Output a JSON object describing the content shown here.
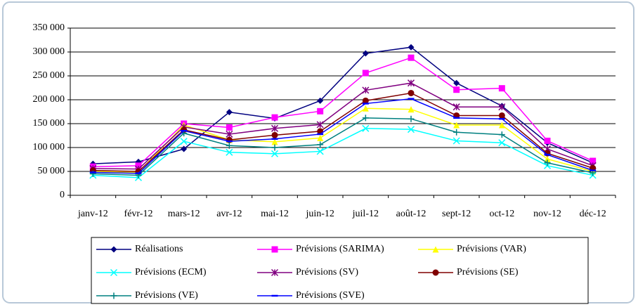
{
  "chart_data": {
    "type": "line",
    "categories": [
      "janv-12",
      "févr-12",
      "mars-12",
      "avr-12",
      "mai-12",
      "juin-12",
      "juil-12",
      "août-12",
      "sept-12",
      "oct-12",
      "nov-12",
      "déc-12"
    ],
    "series": [
      {
        "name": "Réalisations",
        "color": "#000080",
        "marker": "diamond",
        "values": [
          66000,
          70000,
          97000,
          174000,
          161000,
          198000,
          297000,
          310000,
          235000,
          187000,
          110000,
          68000
        ]
      },
      {
        "name": "Prévisions (SARIMA)",
        "color": "#ff00ff",
        "marker": "square",
        "values": [
          60000,
          62000,
          150000,
          142000,
          163000,
          176000,
          256000,
          288000,
          221000,
          224000,
          114000,
          72000
        ]
      },
      {
        "name": "Prévisions (VAR)",
        "color": "#ffff00",
        "marker": "triangle",
        "values": [
          50000,
          48000,
          147000,
          116000,
          112000,
          120000,
          182000,
          180000,
          147000,
          147000,
          76000,
          50000
        ]
      },
      {
        "name": "Prévisions (ECM)",
        "color": "#00ffff",
        "marker": "x",
        "values": [
          42000,
          37000,
          113000,
          90000,
          87000,
          92000,
          140000,
          138000,
          114000,
          110000,
          62000,
          42000
        ]
      },
      {
        "name": "Prévisions (SV)",
        "color": "#800080",
        "marker": "star",
        "values": [
          56000,
          55000,
          143000,
          128000,
          140000,
          148000,
          220000,
          235000,
          185000,
          185000,
          97000,
          62000
        ]
      },
      {
        "name": "Prévisions (SE)",
        "color": "#800000",
        "marker": "circle",
        "values": [
          52000,
          50000,
          137000,
          116000,
          126000,
          134000,
          198000,
          214000,
          167000,
          167000,
          88000,
          57000
        ]
      },
      {
        "name": "Prévisions (VE)",
        "color": "#008080",
        "marker": "plus",
        "values": [
          45000,
          42000,
          130000,
          104000,
          100000,
          106000,
          162000,
          160000,
          132000,
          127000,
          68000,
          47000
        ]
      },
      {
        "name": "Prévisions (SVE)",
        "color": "#0000ff",
        "marker": "dash",
        "values": [
          48000,
          46000,
          135000,
          113000,
          118000,
          128000,
          192000,
          202000,
          162000,
          160000,
          85000,
          52000
        ]
      }
    ],
    "ylim": [
      0,
      350000
    ],
    "yticks": [
      0,
      {
        "value": 50000,
        "label": "50 000"
      },
      {
        "value": 100000,
        "label": "100 000"
      },
      {
        "value": 150000,
        "label": "150 000"
      },
      {
        "value": 200000,
        "label": "200 000"
      },
      {
        "value": 250000,
        "label": "250 000"
      },
      {
        "value": 300000,
        "label": "300 000"
      },
      {
        "value": 350000,
        "label": "350 000"
      }
    ],
    "grid": true
  }
}
